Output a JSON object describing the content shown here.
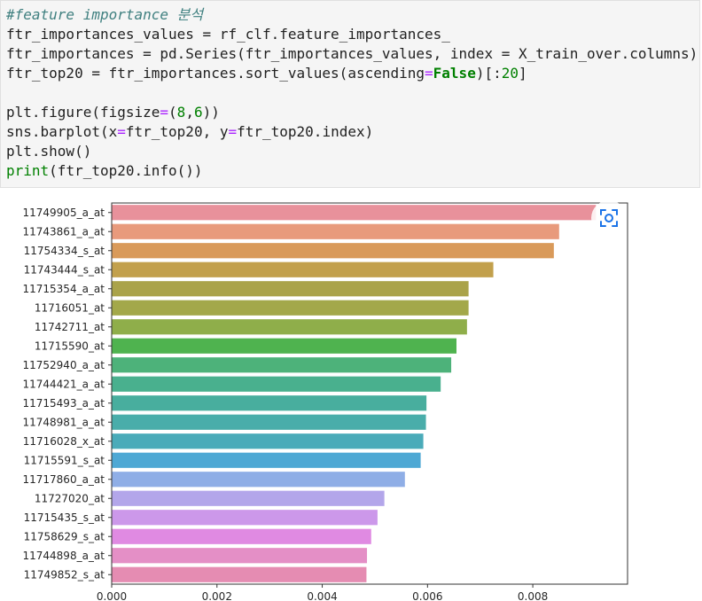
{
  "code": {
    "line1_comment": "#feature importance 분석",
    "line2": "ftr_importances_values = rf_clf.feature_importances_",
    "line3": "ftr_importances = pd.Series(ftr_importances_values, index = X_train_over.columns)",
    "line4_a": "ftr_top20 = ftr_importances.sort_values(ascending",
    "line4_op": "=",
    "line4_kw": "False",
    "line4_b": ")[:",
    "line4_num": "20",
    "line4_c": "]",
    "line6_a": "plt.figure(figsize",
    "line6_op": "=",
    "line6_b": "(",
    "line6_n1": "8",
    "line6_comma": ",",
    "line6_n2": "6",
    "line6_c": "))",
    "line7_a": "sns.barplot(x",
    "line7_op1": "=",
    "line7_b": "ftr_top20, y",
    "line7_op2": "=",
    "line7_c": "ftr_top20.index)",
    "line8": "plt.show()",
    "line9_builtin": "print",
    "line9_rest": "(ftr_top20.info())"
  },
  "copy_icon": "copy-image-icon",
  "chart_data": {
    "type": "bar",
    "orientation": "horizontal",
    "categories": [
      "11749905_a_at",
      "11743861_a_at",
      "11754334_s_at",
      "11743444_s_at",
      "11715354_a_at",
      "11716051_at",
      "11742711_at",
      "11715590_at",
      "11752940_a_at",
      "11744421_a_at",
      "11715493_a_at",
      "11748981_a_at",
      "11716028_x_at",
      "11715591_s_at",
      "11717860_a_at",
      "11727020_at",
      "11715435_s_at",
      "11758629_s_at",
      "11744898_a_at",
      "11749852_s_at"
    ],
    "values": [
      0.0092,
      0.0085,
      0.0084,
      0.00725,
      0.00678,
      0.00678,
      0.00675,
      0.00655,
      0.00645,
      0.00625,
      0.00598,
      0.00597,
      0.00592,
      0.00587,
      0.00557,
      0.00518,
      0.00505,
      0.00493,
      0.00485,
      0.00484
    ],
    "colors": [
      "#e8919b",
      "#e89a7c",
      "#d99a5a",
      "#c2a04c",
      "#aaa34a",
      "#a3a84a",
      "#8fae4a",
      "#4fb34f",
      "#4db27a",
      "#49b08e",
      "#48ae9e",
      "#49adaa",
      "#4aabb9",
      "#4ea8d4",
      "#8faee6",
      "#b3a6ea",
      "#cc98ea",
      "#e08ae2",
      "#e48fc6",
      "#e58cb2"
    ],
    "x_ticks": [
      "0.000",
      "0.002",
      "0.004",
      "0.006",
      "0.008"
    ],
    "xlim": [
      0,
      0.0098
    ],
    "title": "",
    "xlabel": "",
    "ylabel": "",
    "grid": false
  }
}
